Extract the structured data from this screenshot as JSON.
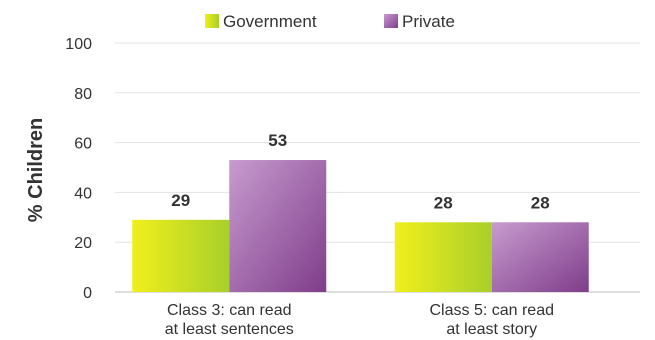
{
  "chart_data": {
    "type": "bar",
    "ylabel": "% Children",
    "ylim": [
      0,
      100
    ],
    "yticks": [
      0,
      20,
      40,
      60,
      80,
      100
    ],
    "grid": true,
    "legend_placement": "top-center",
    "categories": [
      [
        "Class 3: can read",
        "at least sentences"
      ],
      [
        "Class 5: can read",
        "at least story"
      ]
    ],
    "series": [
      {
        "name": "Government",
        "values": [
          29,
          28
        ],
        "color": "#c8d81a"
      },
      {
        "name": "Private",
        "values": [
          53,
          28
        ],
        "color": "#9b59a8"
      }
    ]
  }
}
